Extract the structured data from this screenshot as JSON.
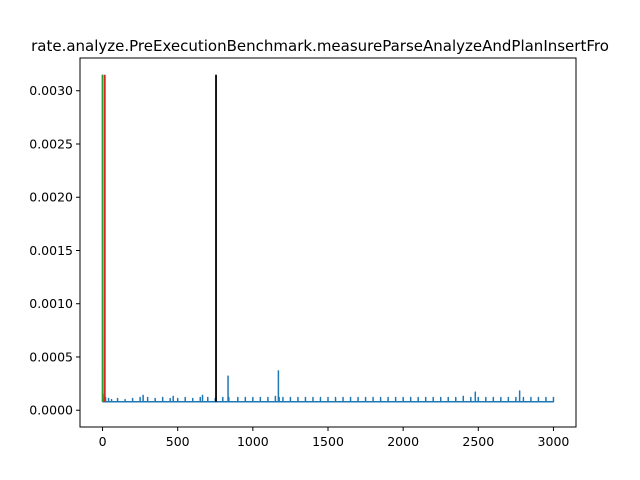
{
  "chart_data": {
    "type": "line",
    "title": "rate.analyze.PreExecutionBenchmark.measureParseAnalyzeAndPlanInsertFro",
    "xlabel": "",
    "ylabel": "",
    "xlim": [
      -150,
      3150
    ],
    "ylim": [
      -0.0001575,
      0.0033075
    ],
    "grid": false,
    "x_ticks": [
      0,
      500,
      1000,
      1500,
      2000,
      2500,
      3000
    ],
    "x_tick_labels": [
      "0",
      "500",
      "1000",
      "1500",
      "2000",
      "2500",
      "3000"
    ],
    "y_ticks": [
      0.0,
      0.0005,
      0.001,
      0.0015,
      0.002,
      0.0025,
      0.003
    ],
    "y_tick_labels": [
      "0.0000",
      "0.0005",
      "0.0010",
      "0.0015",
      "0.0020",
      "0.0025",
      "0.0030"
    ],
    "series": [
      {
        "color": "#1f77b4",
        "baseline": 8e-05,
        "x": [
          0,
          2,
          4,
          6,
          10,
          20,
          40,
          60,
          100,
          150,
          200,
          250,
          270,
          300,
          350,
          400,
          450,
          470,
          500,
          550,
          600,
          650,
          665,
          700,
          750,
          800,
          835,
          840,
          900,
          950,
          1000,
          1050,
          1100,
          1150,
          1170,
          1175,
          1200,
          1250,
          1300,
          1350,
          1400,
          1450,
          1500,
          1550,
          1600,
          1650,
          1700,
          1750,
          1800,
          1850,
          1900,
          1950,
          2000,
          2050,
          2100,
          2150,
          2200,
          2250,
          2300,
          2350,
          2400,
          2450,
          2480,
          2500,
          2550,
          2600,
          2650,
          2700,
          2750,
          2775,
          2800,
          2850,
          2900,
          2950,
          3000
        ],
        "y": [
          0.00315,
          0.0004,
          0.00015,
          0.0001,
          9e-05,
          0.00012,
          0.00011,
          0.0001,
          0.00011,
          0.0001,
          0.00011,
          0.00012,
          0.00014,
          0.00012,
          0.00011,
          0.00012,
          0.00011,
          0.00013,
          0.00011,
          0.00012,
          0.00011,
          0.00012,
          0.00014,
          0.00012,
          0.00011,
          0.00012,
          0.00032,
          0.00012,
          0.00012,
          0.00012,
          0.00012,
          0.00012,
          0.00012,
          0.00013,
          0.00037,
          0.00012,
          0.00012,
          0.00012,
          0.00012,
          0.00012,
          0.00012,
          0.00012,
          0.00012,
          0.00012,
          0.00012,
          0.00012,
          0.00012,
          0.00012,
          0.00012,
          0.00012,
          0.00012,
          0.00012,
          0.00012,
          0.00012,
          0.00012,
          0.00012,
          0.00012,
          0.00012,
          0.00012,
          0.00012,
          0.00013,
          0.00012,
          0.00017,
          0.00012,
          0.00012,
          0.00012,
          0.00012,
          0.00012,
          0.00012,
          0.00018,
          0.00012,
          0.00012,
          0.00012,
          0.00012,
          0.00012
        ]
      }
    ],
    "vertical_lines": [
      {
        "color": "#2ca02c",
        "x": 0,
        "y0": 8e-05,
        "y1": 0.00315
      },
      {
        "color": "#d62728",
        "x": 15,
        "y0": 8e-05,
        "y1": 0.00315
      },
      {
        "color": "#000000",
        "x": 755,
        "y0": 8e-05,
        "y1": 0.00315
      }
    ]
  }
}
